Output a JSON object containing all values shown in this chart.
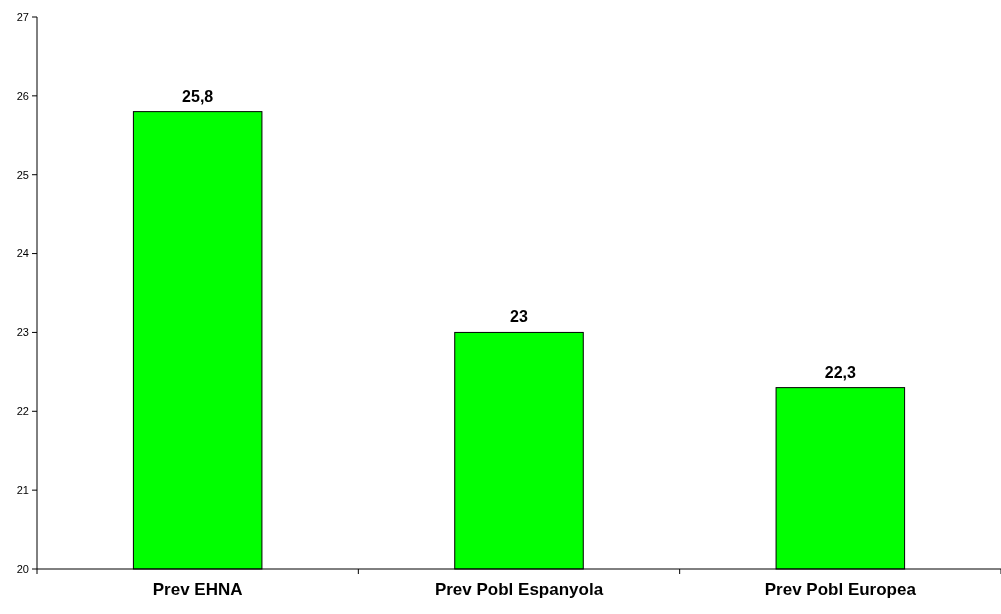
{
  "chart_data": {
    "type": "bar",
    "categories": [
      "Prev EHNA",
      "Prev Pobl Espanyola",
      "Prev Pobl Europea"
    ],
    "values": [
      25.8,
      23,
      22.3
    ],
    "color": "#00ff00",
    "value_labels": [
      "25,8",
      "23",
      "22,3"
    ],
    "ylim": [
      20,
      27
    ],
    "yticks": [
      20,
      21,
      22,
      23,
      24,
      25,
      26,
      27
    ]
  }
}
